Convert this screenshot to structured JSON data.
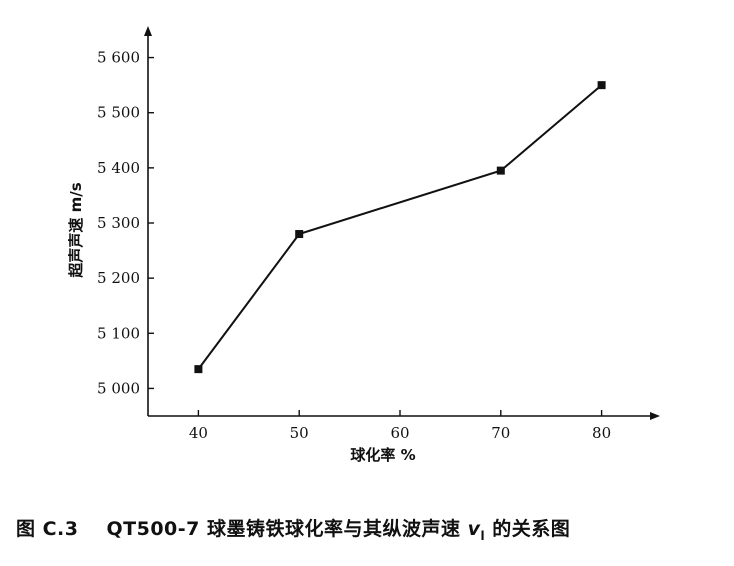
{
  "chart_data": {
    "type": "line",
    "x": [
      40,
      50,
      70,
      80
    ],
    "y": [
      5035,
      5280,
      5395,
      5550
    ],
    "xticks": [
      40,
      50,
      60,
      70,
      80
    ],
    "yticks": [
      5000,
      5100,
      5200,
      5300,
      5400,
      5500,
      5600
    ],
    "ytick_labels": [
      "5 000",
      "5 100",
      "5 200",
      "5 300",
      "5 400",
      "5 500",
      "5 600"
    ],
    "xlim": [
      35,
      85
    ],
    "ylim": [
      4950,
      5650
    ],
    "xlabel": "球化率  %",
    "ylabel": "超声声速   m/s",
    "marker": "square",
    "grid": false,
    "line_color": "#111111"
  },
  "caption": {
    "figure_number": "图 C.3",
    "title_main": "QT500-7 球墨铸铁球化率与其纵波声速 ",
    "symbol": "v",
    "symbol_sub": "l",
    "title_tail": " 的关系图"
  }
}
